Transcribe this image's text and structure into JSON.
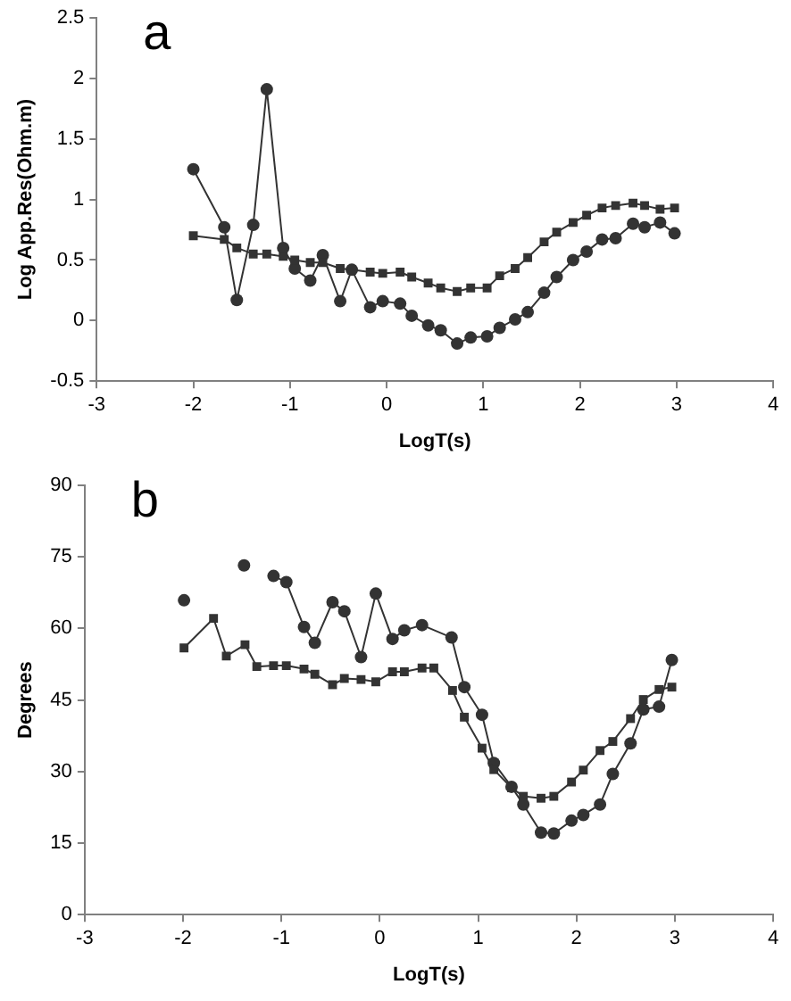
{
  "chart_data": [
    {
      "type": "line",
      "title": "a",
      "xlabel": "LogT(s)",
      "ylabel": "Log App.Res(Ohm.m)",
      "xlim": [
        -3,
        4
      ],
      "xticks": [
        -3,
        -2,
        -1,
        0,
        1,
        2,
        3,
        4
      ],
      "ylim": [
        -0.5,
        2.5
      ],
      "yticks": [
        -0.5,
        0,
        0.5,
        1,
        1.5,
        2,
        2.5
      ],
      "x": [
        -2.0,
        -1.68,
        -1.55,
        -1.38,
        -1.24,
        -1.07,
        -0.95,
        -0.79,
        -0.66,
        -0.48,
        -0.36,
        -0.17,
        -0.04,
        0.14,
        0.26,
        0.43,
        0.56,
        0.73,
        0.87,
        1.04,
        1.17,
        1.33,
        1.46,
        1.63,
        1.76,
        1.93,
        2.07,
        2.23,
        2.37,
        2.55,
        2.67,
        2.83,
        2.98
      ],
      "series": [
        {
          "color": "#333333",
          "marker": "circle",
          "values": [
            1.25,
            0.77,
            0.17,
            0.79,
            1.91,
            0.6,
            0.43,
            0.33,
            0.54,
            0.16,
            0.42,
            0.11,
            0.16,
            0.14,
            0.04,
            -0.04,
            -0.08,
            -0.19,
            -0.14,
            -0.13,
            -0.06,
            0.01,
            0.07,
            0.23,
            0.36,
            0.5,
            0.57,
            0.67,
            0.68,
            0.8,
            0.77,
            0.81,
            0.72
          ]
        },
        {
          "color": "#333333",
          "marker": "square",
          "values": [
            0.7,
            0.67,
            0.6,
            0.55,
            0.55,
            0.53,
            0.5,
            0.48,
            0.48,
            0.43,
            0.42,
            0.4,
            0.39,
            0.4,
            0.36,
            0.31,
            0.27,
            0.24,
            0.27,
            0.27,
            0.37,
            0.43,
            0.52,
            0.65,
            0.73,
            0.81,
            0.87,
            0.93,
            0.95,
            0.97,
            0.95,
            0.92,
            0.93
          ]
        }
      ]
    },
    {
      "type": "line",
      "title": "b",
      "xlabel": "LogT(s)",
      "ylabel": "Degrees",
      "xlim": [
        -3,
        4
      ],
      "xticks": [
        -3,
        -2,
        -1,
        0,
        1,
        2,
        3,
        4
      ],
      "ylim": [
        0,
        90
      ],
      "yticks": [
        0,
        15,
        30,
        45,
        60,
        75,
        90
      ],
      "series": [
        {
          "color": "#333333",
          "marker": "circle",
          "x": [
            -1.99,
            -1.55,
            -1.38,
            -1.24,
            -1.08,
            -0.95,
            -0.77,
            -0.66,
            -0.48,
            -0.36,
            -0.19,
            -0.04,
            0.13,
            0.25,
            0.43,
            0.73,
            0.86,
            1.04,
            1.16,
            1.34,
            1.46,
            1.64,
            1.77,
            1.95,
            2.07,
            2.24,
            2.37,
            2.55,
            2.68,
            2.84,
            2.97
          ],
          "values": [
            65.9,
            null,
            73.2,
            null,
            71.0,
            69.7,
            60.3,
            57.0,
            65.5,
            63.6,
            54.0,
            67.3,
            57.8,
            59.6,
            60.7,
            58.1,
            47.7,
            41.9,
            31.8,
            26.8,
            23.1,
            17.2,
            17.0,
            19.7,
            20.9,
            23.1,
            29.5,
            35.9,
            43.0,
            43.6,
            53.4
          ]
        },
        {
          "color": "#333333",
          "marker": "square",
          "x": [
            -1.99,
            -1.69,
            -1.56,
            -1.37,
            -1.25,
            -1.08,
            -0.95,
            -0.77,
            -0.66,
            -0.48,
            -0.36,
            -0.19,
            -0.04,
            0.13,
            0.25,
            0.43,
            0.55,
            0.74,
            0.86,
            1.04,
            1.16,
            1.34,
            1.46,
            1.64,
            1.77,
            1.95,
            2.07,
            2.24,
            2.37,
            2.55,
            2.68,
            2.84,
            2.97
          ],
          "values": [
            55.9,
            62.1,
            54.2,
            56.6,
            52.0,
            52.2,
            52.2,
            51.5,
            50.4,
            48.2,
            49.5,
            49.3,
            48.8,
            50.9,
            50.9,
            51.7,
            51.7,
            47.0,
            41.4,
            34.9,
            30.4,
            26.6,
            24.8,
            24.4,
            24.8,
            27.8,
            30.3,
            34.4,
            36.3,
            41.1,
            45.1,
            47.2,
            47.7
          ]
        }
      ]
    }
  ]
}
